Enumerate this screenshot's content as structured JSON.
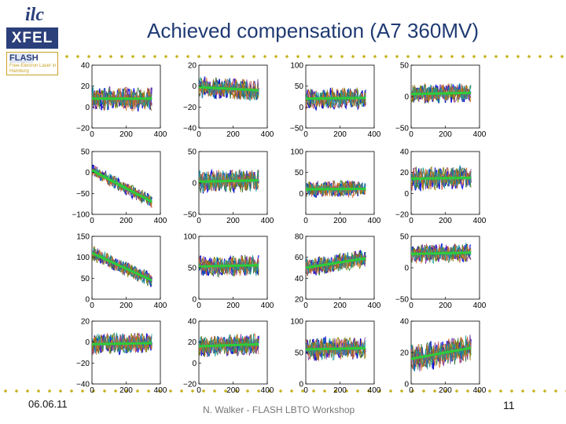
{
  "slide": {
    "title": "Achieved compensation (A7 360MV)",
    "date": "06.06.11",
    "footer_center": "N. Walker - FLASH LBTO Workshop",
    "page_number": "11",
    "colors": {
      "title": "#1f3a73",
      "dots": "#c7b11a",
      "fit_line": "#2ecc3a"
    }
  },
  "logos": {
    "ilc_text": "ilc",
    "xfel_text": "XFEL",
    "flash_name": "FLASH",
    "flash_subtitle": "Free-Electron Laser in Hamburg"
  },
  "chart_data": [
    {
      "type": "line",
      "xlim": [
        0,
        400
      ],
      "ylim": [
        -20,
        40
      ],
      "yticks": [
        -20,
        0,
        20,
        40
      ],
      "xticks": [
        0,
        200,
        400
      ],
      "fit": [
        8,
        8
      ],
      "noise": 9,
      "grid": false
    },
    {
      "type": "line",
      "xlim": [
        0,
        400
      ],
      "ylim": [
        -40,
        20
      ],
      "yticks": [
        -40,
        -20,
        0,
        20
      ],
      "xticks": [
        0,
        200,
        400
      ],
      "fit": [
        -1,
        -4
      ],
      "noise": 8,
      "grid": false
    },
    {
      "type": "line",
      "xlim": [
        0,
        400
      ],
      "ylim": [
        -50,
        100
      ],
      "yticks": [
        -50,
        0,
        50,
        100
      ],
      "xticks": [
        0,
        200,
        400
      ],
      "fit": [
        20,
        22
      ],
      "noise": 20,
      "grid": false
    },
    {
      "type": "line",
      "xlim": [
        0,
        400
      ],
      "ylim": [
        -50,
        50
      ],
      "yticks": [
        -50,
        0,
        50
      ],
      "xticks": [
        0,
        200,
        400
      ],
      "fit": [
        4,
        6
      ],
      "noise": 12,
      "grid": false
    },
    {
      "type": "line",
      "xlim": [
        0,
        400
      ],
      "ylim": [
        -100,
        50
      ],
      "yticks": [
        -100,
        -50,
        0,
        50
      ],
      "xticks": [
        0,
        200,
        400
      ],
      "fit": [
        5,
        -70
      ],
      "noise": 12,
      "grid": false
    },
    {
      "type": "line",
      "xlim": [
        0,
        400
      ],
      "ylim": [
        -50,
        50
      ],
      "yticks": [
        -50,
        0,
        50
      ],
      "xticks": [
        0,
        200,
        400
      ],
      "fit": [
        2,
        4
      ],
      "noise": 14,
      "grid": false
    },
    {
      "type": "line",
      "xlim": [
        0,
        400
      ],
      "ylim": [
        -50,
        100
      ],
      "yticks": [
        0,
        50,
        100
      ],
      "xticks": [
        0,
        200,
        400
      ],
      "fit": [
        10,
        11
      ],
      "noise": 16,
      "grid": false
    },
    {
      "type": "line",
      "xlim": [
        0,
        400
      ],
      "ylim": [
        -20,
        40
      ],
      "yticks": [
        -20,
        0,
        20,
        40
      ],
      "xticks": [
        0,
        200,
        400
      ],
      "fit": [
        14,
        15
      ],
      "noise": 9,
      "grid": false
    },
    {
      "type": "line",
      "xlim": [
        0,
        400
      ],
      "ylim": [
        0,
        150
      ],
      "yticks": [
        0,
        50,
        100,
        150
      ],
      "xticks": [
        0,
        200,
        400
      ],
      "fit": [
        110,
        45
      ],
      "noise": 14,
      "grid": false
    },
    {
      "type": "line",
      "xlim": [
        0,
        400
      ],
      "ylim": [
        0,
        100
      ],
      "yticks": [
        0,
        50,
        100
      ],
      "xticks": [
        0,
        200,
        400
      ],
      "fit": [
        52,
        54
      ],
      "noise": 13,
      "grid": false
    },
    {
      "type": "line",
      "xlim": [
        0,
        400
      ],
      "ylim": [
        20,
        80
      ],
      "yticks": [
        20,
        40,
        60,
        80
      ],
      "xticks": [
        0,
        200,
        400
      ],
      "fit": [
        50,
        59
      ],
      "noise": 7,
      "grid": false
    },
    {
      "type": "line",
      "xlim": [
        0,
        400
      ],
      "ylim": [
        -50,
        50
      ],
      "yticks": [
        -50,
        0,
        50
      ],
      "xticks": [
        0,
        200,
        400
      ],
      "fit": [
        22,
        24
      ],
      "noise": 12,
      "grid": false
    },
    {
      "type": "line",
      "xlim": [
        0,
        400
      ],
      "ylim": [
        -40,
        20
      ],
      "yticks": [
        -40,
        -20,
        0,
        20
      ],
      "xticks": [
        0,
        200,
        400
      ],
      "fit": [
        -2,
        -1
      ],
      "noise": 8,
      "grid": false
    },
    {
      "type": "line",
      "xlim": [
        0,
        400
      ],
      "ylim": [
        -20,
        40
      ],
      "yticks": [
        -20,
        0,
        20,
        40
      ],
      "xticks": [
        0,
        200,
        400
      ],
      "fit": [
        16,
        18
      ],
      "noise": 8,
      "grid": false
    },
    {
      "type": "line",
      "xlim": [
        0,
        400
      ],
      "ylim": [
        0,
        100
      ],
      "yticks": [
        0,
        50,
        100
      ],
      "xticks": [
        0,
        200,
        400
      ],
      "fit": [
        55,
        57
      ],
      "noise": 14,
      "grid": false
    },
    {
      "type": "line",
      "xlim": [
        0,
        400
      ],
      "ylim": [
        0,
        40
      ],
      "yticks": [
        0,
        20,
        40
      ],
      "xticks": [
        0,
        200,
        400
      ],
      "fit": [
        16,
        23
      ],
      "noise": 7,
      "grid": false
    }
  ]
}
